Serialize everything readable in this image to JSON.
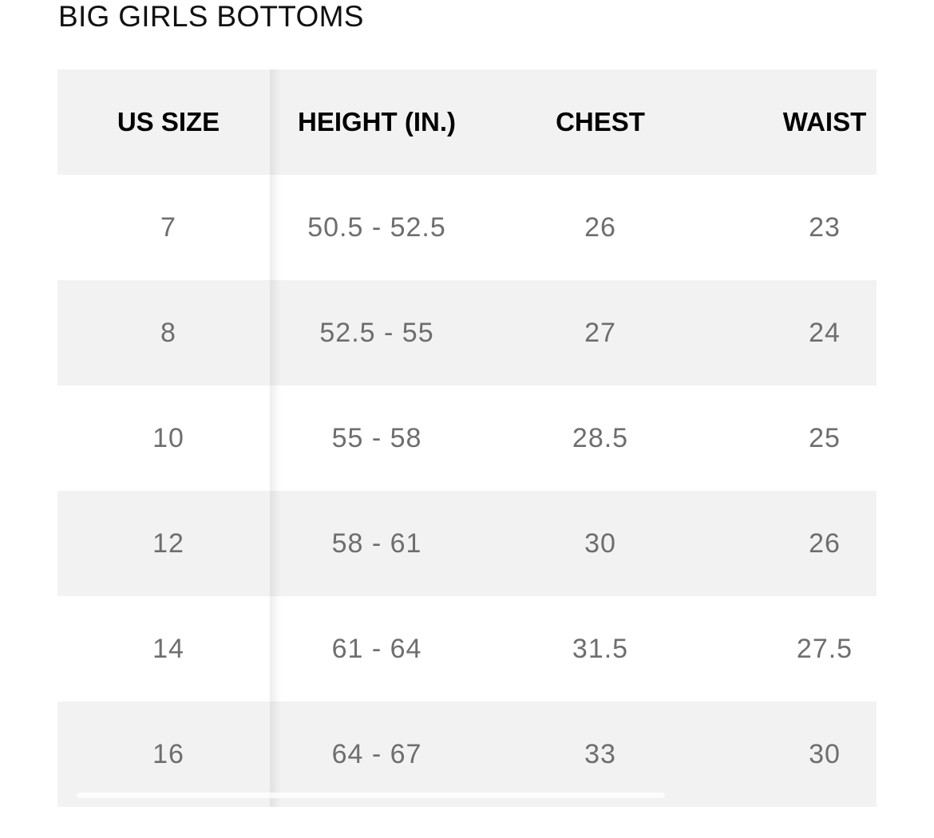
{
  "title": "BIG GIRLS BOTTOMS",
  "table": {
    "headers": [
      "US SIZE",
      "HEIGHT (IN.)",
      "CHEST",
      "WAIST"
    ],
    "rows": [
      [
        "7",
        "50.5 - 52.5",
        "26",
        "23"
      ],
      [
        "8",
        "52.5 - 55",
        "27",
        "24"
      ],
      [
        "10",
        "55 - 58",
        "28.5",
        "25"
      ],
      [
        "12",
        "58 - 61",
        "30",
        "26"
      ],
      [
        "14",
        "61 - 64",
        "31.5",
        "27.5"
      ],
      [
        "16",
        "64 - 67",
        "33",
        "30"
      ]
    ]
  },
  "colors": {
    "header_bg": "#f2f2f2",
    "alt_row_bg": "#f2f2f2",
    "value_text": "#6e6e6e"
  }
}
